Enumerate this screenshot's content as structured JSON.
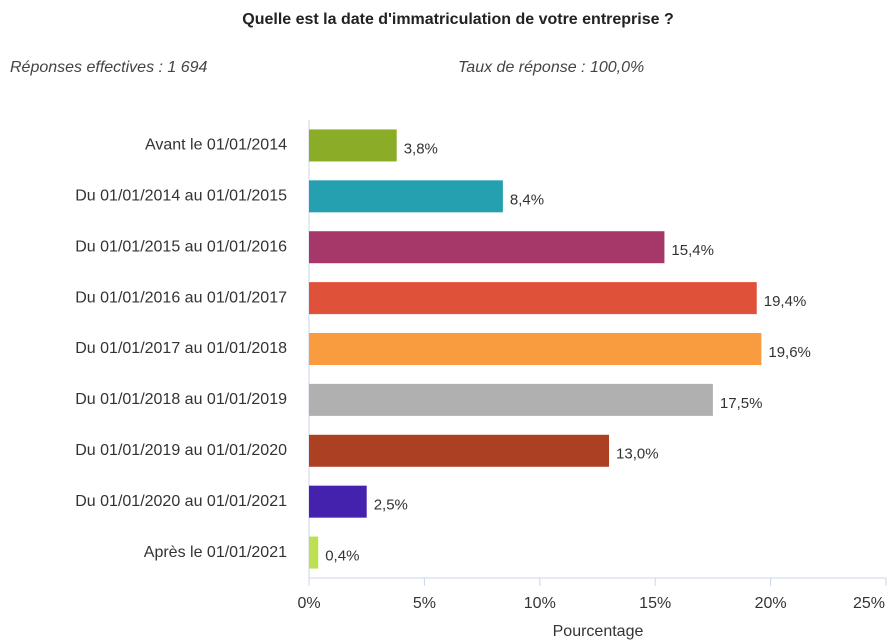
{
  "chart_data": {
    "type": "hbar",
    "title": "Quelle est la date d'immatriculation de votre entreprise ?",
    "annotations": [
      "Réponses effectives : 1 694",
      "Taux de réponse : 100,0%"
    ],
    "categories": [
      "Avant le 01/01/2014",
      "Du 01/01/2014 au 01/01/2015",
      "Du 01/01/2015 au 01/01/2016",
      "Du 01/01/2016 au 01/01/2017",
      "Du 01/01/2017 au 01/01/2018",
      "Du 01/01/2018 au 01/01/2019",
      "Du 01/01/2019 au 01/01/2020",
      "Du 01/01/2020 au 01/01/2021",
      "Après le 01/01/2021"
    ],
    "values": [
      3.8,
      8.4,
      15.4,
      19.4,
      19.6,
      17.5,
      13.0,
      2.5,
      0.4
    ],
    "value_labels": [
      "3,8%",
      "8,4%",
      "15,4%",
      "19,4%",
      "19,6%",
      "17,5%",
      "13,0%",
      "2,5%",
      "0,4%"
    ],
    "colors": [
      "#8aac26",
      "#24a0b0",
      "#a53868",
      "#e0513a",
      "#f99c3f",
      "#b0b0b0",
      "#ab4023",
      "#4422ad",
      "#bde052"
    ],
    "xlabel": "Pourcentage",
    "xlim": [
      0,
      25
    ],
    "xticks": [
      {
        "value": 0,
        "label": "0%"
      },
      {
        "value": 5,
        "label": "5%"
      },
      {
        "value": 10,
        "label": "10%"
      },
      {
        "value": 15,
        "label": "15%"
      },
      {
        "value": 20,
        "label": "20%"
      },
      {
        "value": 25,
        "label": "25%"
      }
    ],
    "grid": false
  }
}
